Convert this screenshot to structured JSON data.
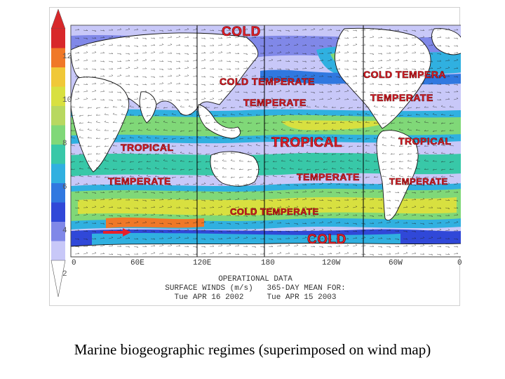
{
  "colorbar": {
    "ticks": [
      "12",
      "10",
      "8",
      "6",
      "4",
      "2"
    ],
    "colors": [
      "#d8282a",
      "#f07828",
      "#f0c838",
      "#d8e040",
      "#b8d860",
      "#80d878",
      "#38c8a8",
      "#30b0e0",
      "#3078e0",
      "#3048d8",
      "#8088e8",
      "#c8c8f8"
    ]
  },
  "regime_labels": {
    "cold_top": "COLD",
    "cold_temperate_n": "COLD TEMPERATE",
    "cold_temperate_ne": "COLD TEMPERA",
    "temperate_n_mid": "TEMPERATE",
    "temperate_n_east": "TEMPERATE",
    "tropical_west": "TROPICAL",
    "tropical_mid": "TROPICAL",
    "tropical_east": "TROPICAL",
    "temperate_s_west": "TEMPERATE",
    "temperate_s_mid": "TEMPERATE",
    "temperate_s_east": "TEMPERATE",
    "cold_temperate_s": "COLD TEMPERATE",
    "cold_bottom": "COLD"
  },
  "x_axis_ticks": [
    "0",
    "60E",
    "120E",
    "180",
    "120W",
    "60W",
    "0"
  ],
  "footer": {
    "line1": "OPERATIONAL DATA",
    "line2": "SURFACE WINDS (m/s)   365-DAY MEAN FOR:",
    "line3": "Tue APR 16 2002     Tue APR 15 2003"
  },
  "caption": "Marine biogeographic regimes (superimposed on wind map)"
}
